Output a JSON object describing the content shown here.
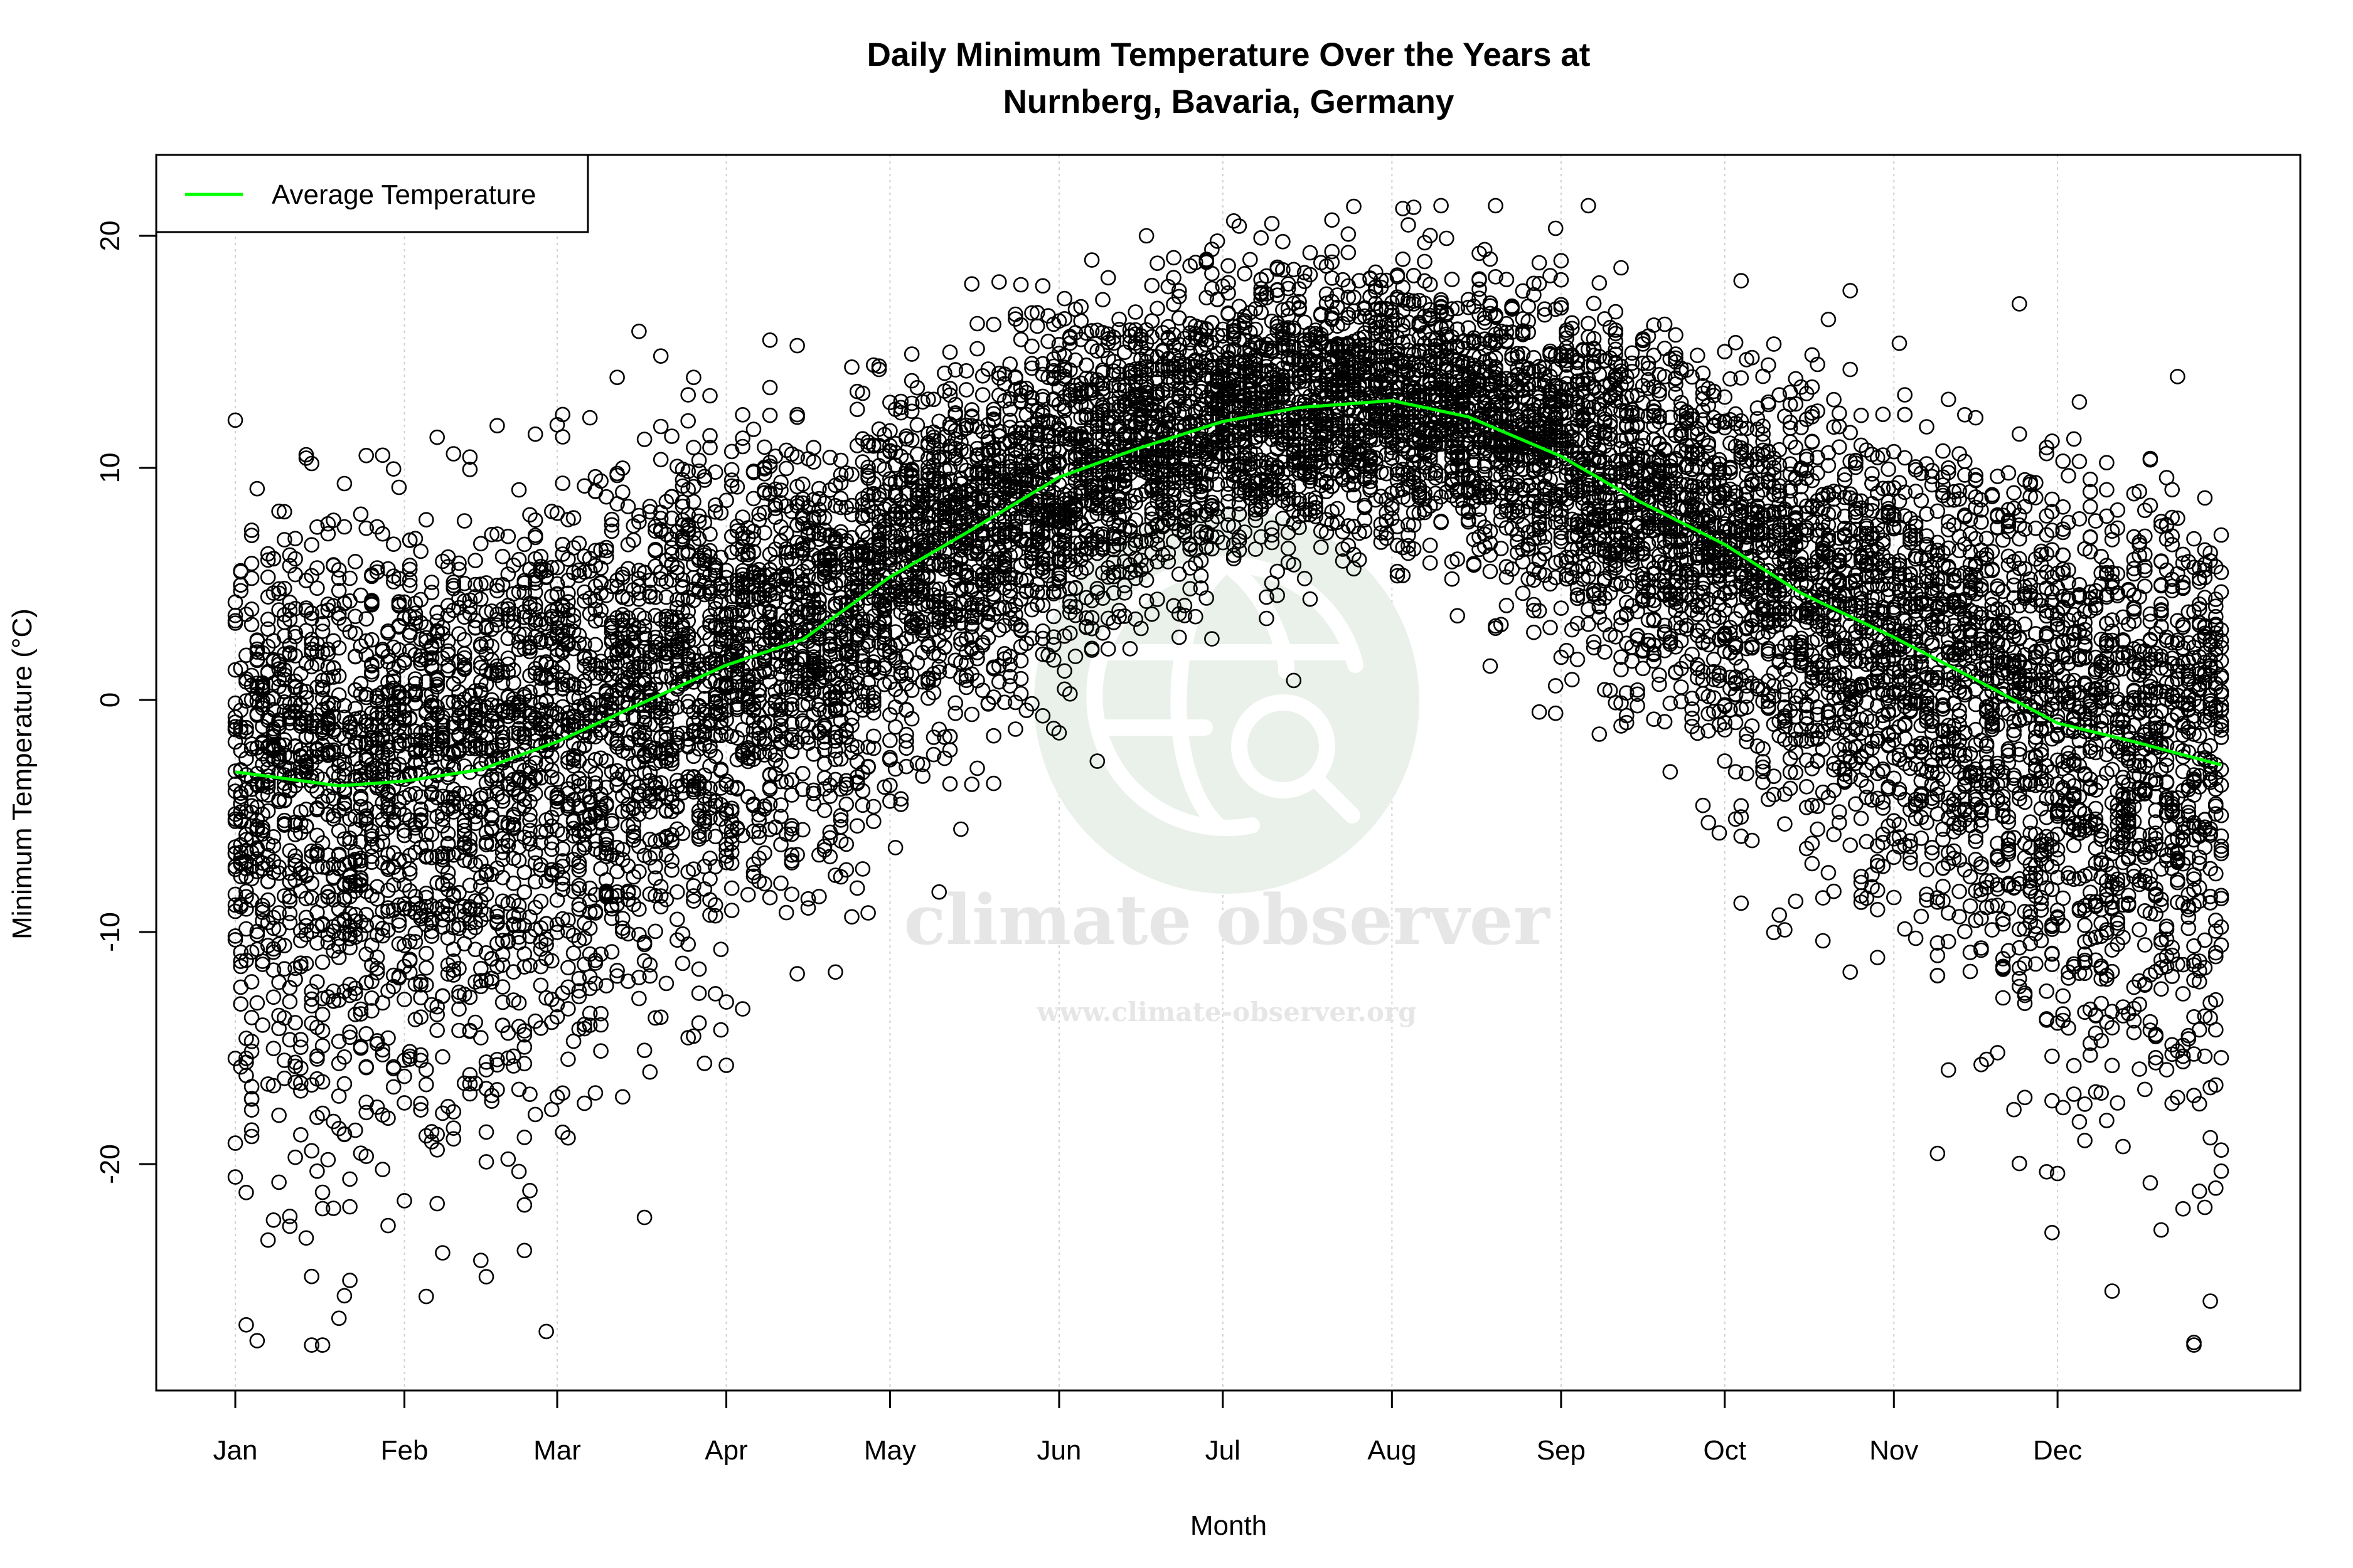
{
  "chart_data": {
    "type": "scatter",
    "title": "Daily Minimum Temperature Over the Years at\nNurnberg, Bavaria, Germany",
    "title_lines": [
      "Daily Minimum Temperature Over the Years at",
      "Nurnberg, Bavaria, Germany"
    ],
    "xlabel": "Month",
    "ylabel": "Minimum Temperature (°C)",
    "x_tick_labels": [
      "Jan",
      "Feb",
      "Mar",
      "Apr",
      "May",
      "Jun",
      "Jul",
      "Aug",
      "Sep",
      "Oct",
      "Nov",
      "Dec"
    ],
    "x_tick_days": [
      1,
      32,
      60,
      91,
      121,
      152,
      182,
      213,
      244,
      274,
      305,
      335
    ],
    "y_ticks": [
      -20,
      -10,
      0,
      10,
      20
    ],
    "y_tick_labels": [
      "-20",
      "-10",
      "0",
      "10",
      "20"
    ],
    "xlim_day": [
      1,
      365
    ],
    "ylim": [
      -29,
      22
    ],
    "grid": "vertical dotted at month ticks",
    "legend": {
      "position": "top-left",
      "entries": [
        {
          "label": "Average Temperature",
          "color": "#00ff00"
        }
      ]
    },
    "point_color": "#000000",
    "average_curve": {
      "name": "Average Temperature",
      "color": "#00ff00",
      "day": [
        1,
        20,
        32,
        46,
        60,
        74,
        91,
        105,
        121,
        135,
        152,
        166,
        182,
        196,
        213,
        227,
        244,
        258,
        274,
        288,
        305,
        319,
        335,
        349,
        365
      ],
      "temp": [
        -3.1,
        -3.7,
        -3.5,
        -3.0,
        -1.8,
        -0.3,
        1.5,
        2.6,
        5.3,
        7.2,
        9.6,
        10.8,
        12.0,
        12.6,
        12.9,
        12.2,
        10.5,
        8.6,
        6.7,
        4.6,
        2.7,
        1.0,
        -1.0,
        -1.8,
        -2.8
      ]
    },
    "scatter_range_note": ""
  },
  "watermark": {
    "name": "climate observer",
    "url": "www.climate-observer.org",
    "icon": "globe-magnifier-icon",
    "color": "#e8efe8"
  }
}
